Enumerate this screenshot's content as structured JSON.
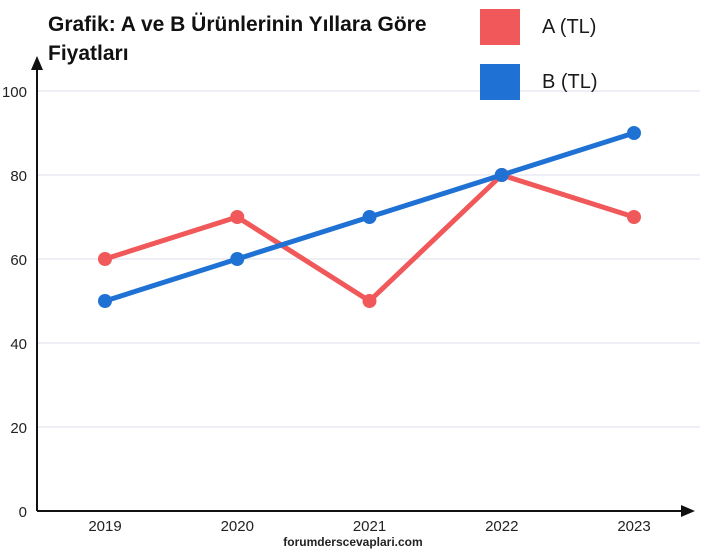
{
  "chart_data": {
    "type": "line",
    "title": "Grafik: A ve B Ürünlerinin Yıllara Göre Fiyatları",
    "categories": [
      "2019",
      "2020",
      "2021",
      "2022",
      "2023"
    ],
    "series": [
      {
        "name": "A (TL)",
        "color": "#f0585a",
        "values": [
          60,
          70,
          50,
          80,
          70
        ]
      },
      {
        "name": "B (TL)",
        "color": "#1f72d4",
        "values": [
          50,
          60,
          70,
          80,
          90
        ]
      }
    ],
    "ylim": [
      0,
      100
    ],
    "yticks": [
      "0",
      "20",
      "40",
      "60",
      "80",
      "100"
    ],
    "xlabel": "",
    "ylabel": "",
    "grid": true,
    "legend": "top-right"
  },
  "watermark": "forumderscevaplari.com"
}
